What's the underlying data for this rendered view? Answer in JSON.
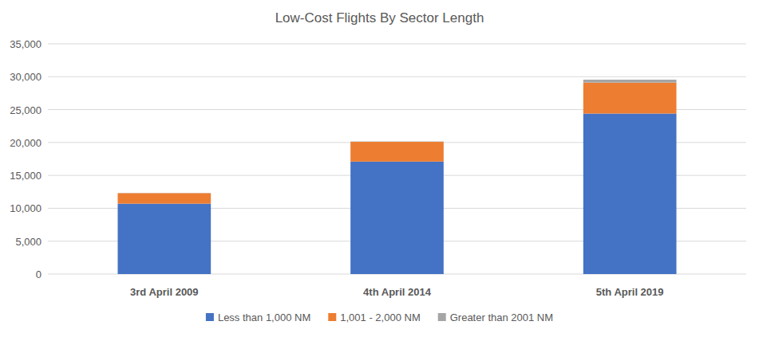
{
  "chart_data": {
    "type": "bar",
    "stacked": true,
    "grid": true,
    "legend": "bottom",
    "title": "Low-Cost Flights By Sector Length",
    "categories": [
      "3rd April 2009",
      "4th April 2014",
      "5th April 2019"
    ],
    "series": [
      {
        "name": "Less than 1,000 NM",
        "color": "#4472c4",
        "values": [
          10700,
          17100,
          24400
        ]
      },
      {
        "name": "1,001 - 2,000 NM",
        "color": "#ed7d31",
        "values": [
          1600,
          3000,
          4700
        ]
      },
      {
        "name": "Greater than 2001 NM",
        "color": "#a5a5a5",
        "values": [
          30,
          50,
          450
        ]
      }
    ],
    "ylim": [
      0,
      35000
    ],
    "yticks": [
      0,
      {
        "value": 5000,
        "label": "5,000"
      },
      {
        "value": 10000,
        "label": "10,000"
      },
      {
        "value": 15000,
        "label": "15,000"
      },
      {
        "value": 20000,
        "label": "20,000"
      },
      {
        "value": 25000,
        "label": "25,000"
      },
      {
        "value": 30000,
        "label": "30,000"
      },
      {
        "value": 35000,
        "label": "35,000"
      }
    ]
  }
}
